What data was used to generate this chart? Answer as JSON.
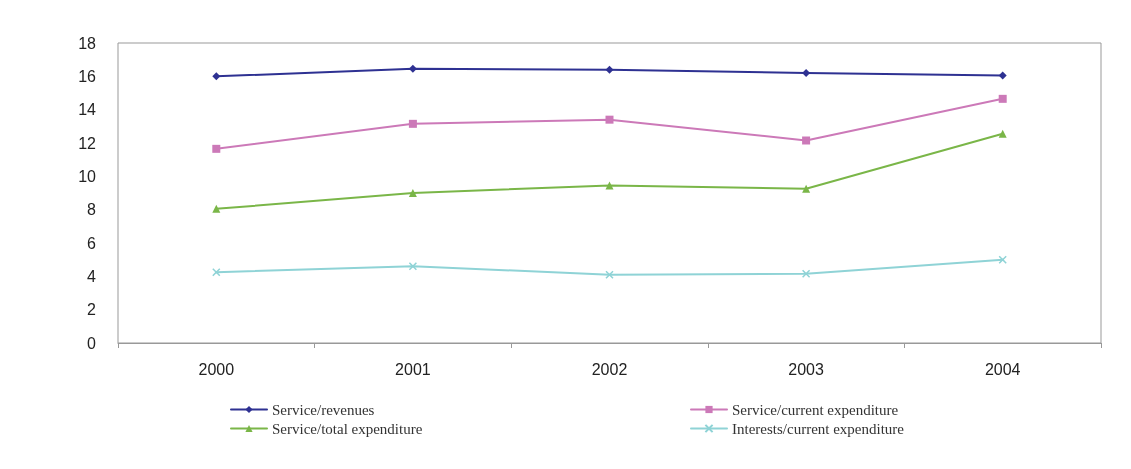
{
  "chart_data": {
    "type": "line",
    "categories": [
      "2000",
      "2001",
      "2002",
      "2003",
      "2004"
    ],
    "series": [
      {
        "name": "Service/revenues",
        "color": "#2e3192",
        "marker": "diamond",
        "values": [
          16.0,
          16.45,
          16.4,
          16.2,
          16.05
        ]
      },
      {
        "name": "Service/current expenditure",
        "color": "#cc79b8",
        "marker": "square",
        "values": [
          11.65,
          13.15,
          13.4,
          12.15,
          14.65
        ]
      },
      {
        "name": "Service/total expenditure",
        "color": "#7ab648",
        "marker": "triangle",
        "values": [
          8.05,
          9.0,
          9.45,
          9.25,
          12.55
        ]
      },
      {
        "name": "Interests/current expenditure",
        "color": "#8fd3d6",
        "marker": "cross",
        "values": [
          4.25,
          4.6,
          4.1,
          4.15,
          5.0
        ]
      }
    ],
    "ylim": [
      0,
      18
    ],
    "yticks": [
      0,
      2,
      4,
      6,
      8,
      10,
      12,
      14,
      16,
      18
    ],
    "grid": false,
    "legend": "bottom",
    "line_style": "solid"
  }
}
